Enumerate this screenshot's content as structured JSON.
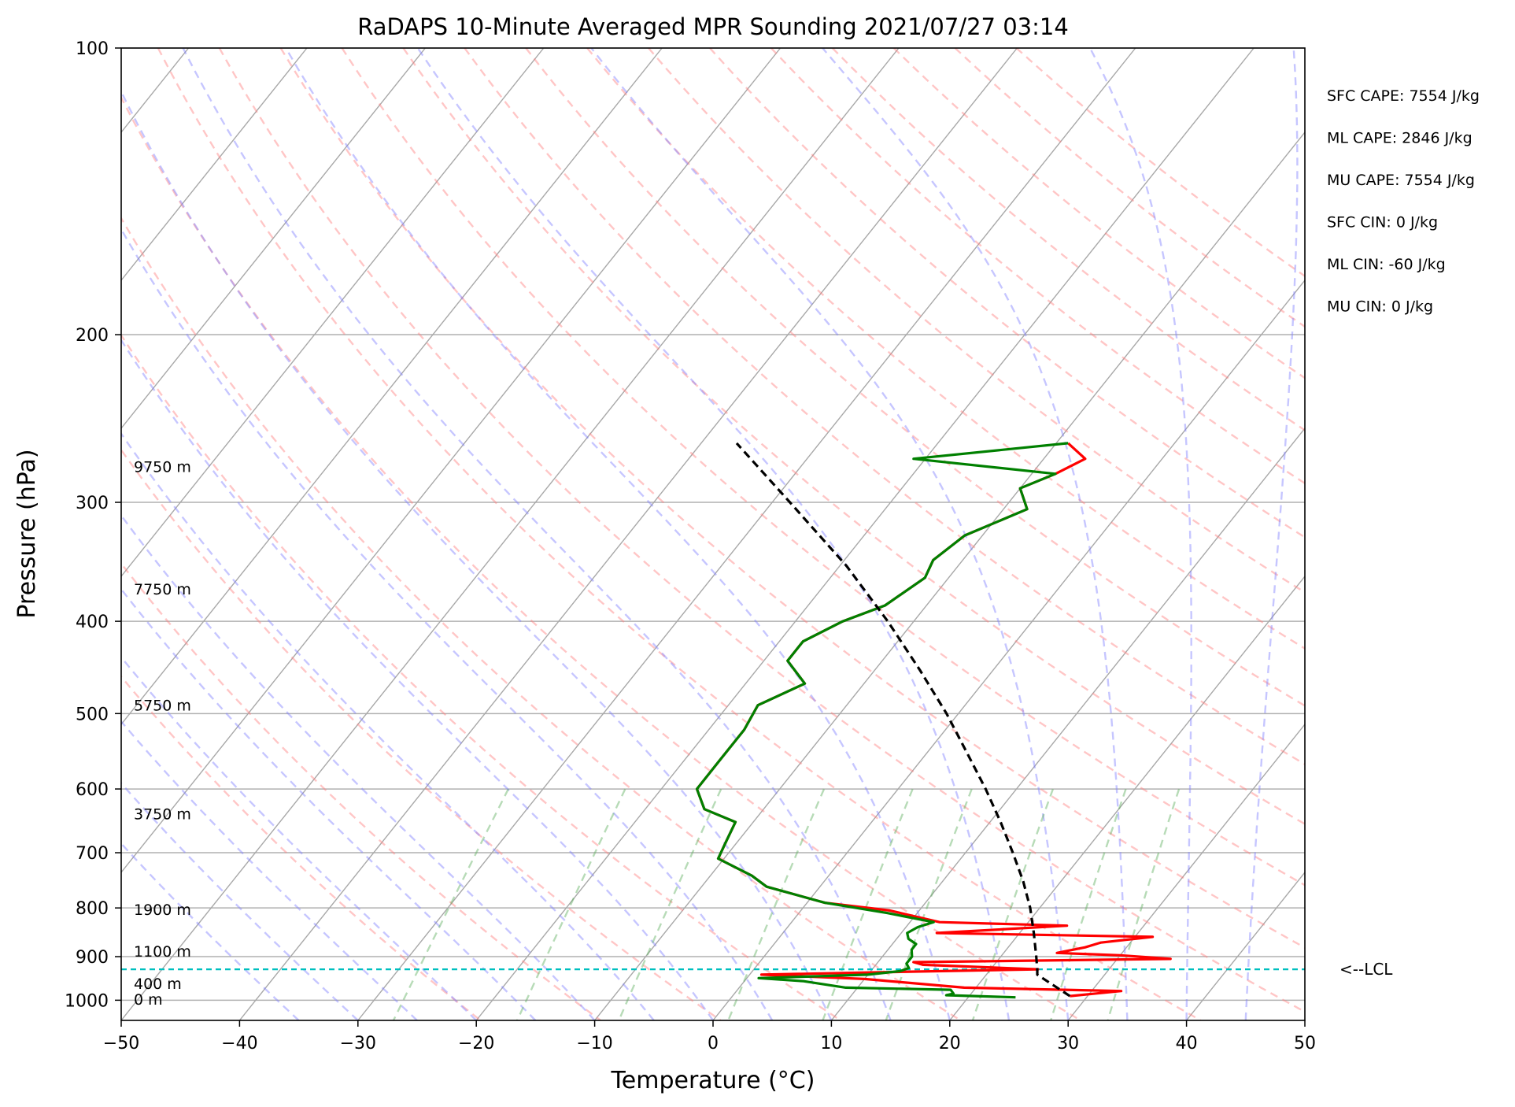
{
  "chart_data": {
    "type": "line",
    "subtype": "skew-T log-P sounding",
    "title": "RaDAPS 10-Minute Averaged MPR Sounding 2021/07/27 03:14",
    "xlabel": "Temperature (°C)",
    "ylabel": "Pressure (hPa)",
    "xlim": [
      -50,
      50
    ],
    "ylim": [
      1050,
      100
    ],
    "y_scale": "log",
    "grid": true,
    "x_ticks": [
      "−50",
      "−40",
      "−30",
      "−20",
      "−10",
      "0",
      "10",
      "20",
      "30",
      "40",
      "50"
    ],
    "x_tick_values": [
      -50,
      -40,
      -30,
      -20,
      -10,
      0,
      10,
      20,
      30,
      40,
      50
    ],
    "y_ticks": [
      "100",
      "200",
      "300",
      "400",
      "500",
      "600",
      "700",
      "800",
      "900",
      "1000"
    ],
    "y_tick_values": [
      100,
      200,
      300,
      400,
      500,
      600,
      700,
      800,
      900,
      1000
    ],
    "height_labels": [
      {
        "text": "9750 m",
        "pressure": 275
      },
      {
        "text": "7750 m",
        "pressure": 370
      },
      {
        "text": "5750 m",
        "pressure": 490
      },
      {
        "text": "3750 m",
        "pressure": 637
      },
      {
        "text": "1900 m",
        "pressure": 803
      },
      {
        "text": "1100 m",
        "pressure": 888
      },
      {
        "text": "400 m",
        "pressure": 960
      },
      {
        "text": "0 m",
        "pressure": 997
      }
    ],
    "indices": [
      {
        "label": "SFC CAPE: 7554 J/kg"
      },
      {
        "label": "ML CAPE: 2846 J/kg"
      },
      {
        "label": "MU CAPE: 7554 J/kg"
      },
      {
        "label": "SFC CIN: 0 J/kg"
      },
      {
        "label": "ML CIN: -60 J/kg"
      },
      {
        "label": "MU CIN: 0 J/kg"
      }
    ],
    "lcl": {
      "label": "<--LCL",
      "pressure": 928
    },
    "series": [
      {
        "key": "temperature",
        "color": "#ff0000",
        "points": [
          [
            990,
            28.5
          ],
          [
            978,
            32.5
          ],
          [
            970,
            19.0
          ],
          [
            950,
            10.0
          ],
          [
            940,
            1.0
          ],
          [
            935,
            10.0
          ],
          [
            928,
            24.0
          ],
          [
            918,
            14.0
          ],
          [
            912,
            13.0
          ],
          [
            905,
            34.5
          ],
          [
            897,
            30.0
          ],
          [
            892,
            24.5
          ],
          [
            880,
            26.5
          ],
          [
            870,
            27.5
          ],
          [
            858,
            31.5
          ],
          [
            850,
            13.0
          ],
          [
            835,
            23.5
          ],
          [
            828,
            12.5
          ],
          [
            805,
            7.5
          ],
          [
            790,
            1.5
          ],
          [
            760,
            -4.5
          ],
          [
            740,
            -6.5
          ],
          [
            710,
            -10.5
          ],
          [
            680,
            -11.0
          ],
          [
            650,
            -11.5
          ],
          [
            630,
            -15.0
          ],
          [
            600,
            -17.0
          ],
          [
            560,
            -17.0
          ],
          [
            520,
            -17.0
          ],
          [
            490,
            -17.5
          ],
          [
            465,
            -15.0
          ],
          [
            440,
            -18.0
          ],
          [
            420,
            -18.0
          ],
          [
            400,
            -16.0
          ],
          [
            385,
            -13.5
          ],
          [
            360,
            -12.0
          ],
          [
            345,
            -12.5
          ],
          [
            325,
            -11.5
          ],
          [
            305,
            -8.0
          ],
          [
            290,
            -10.0
          ],
          [
            280,
            -8.0
          ],
          [
            270,
            -6.5
          ],
          [
            260,
            -9.0
          ]
        ]
      },
      {
        "key": "dewpoint",
        "color": "#008000",
        "points": [
          [
            993,
            24.0
          ],
          [
            988,
            18.0
          ],
          [
            984,
            18.5
          ],
          [
            975,
            18.0
          ],
          [
            970,
            9.0
          ],
          [
            955,
            5.0
          ],
          [
            948,
            1.0
          ],
          [
            940,
            10.0
          ],
          [
            932,
            12.5
          ],
          [
            925,
            13.0
          ],
          [
            915,
            12.5
          ],
          [
            900,
            12.5
          ],
          [
            885,
            12.0
          ],
          [
            873,
            12.0
          ],
          [
            862,
            11.0
          ],
          [
            850,
            10.5
          ],
          [
            838,
            11.0
          ],
          [
            828,
            12.0
          ],
          [
            810,
            7.5
          ],
          [
            790,
            1.5
          ],
          [
            760,
            -4.5
          ],
          [
            740,
            -6.5
          ],
          [
            710,
            -10.5
          ],
          [
            680,
            -11.0
          ],
          [
            650,
            -11.5
          ],
          [
            630,
            -15.0
          ],
          [
            600,
            -17.0
          ],
          [
            560,
            -17.0
          ],
          [
            520,
            -17.0
          ],
          [
            490,
            -17.5
          ],
          [
            465,
            -15.0
          ],
          [
            440,
            -18.0
          ],
          [
            420,
            -18.0
          ],
          [
            400,
            -16.0
          ],
          [
            385,
            -13.5
          ],
          [
            360,
            -12.0
          ],
          [
            345,
            -12.5
          ],
          [
            325,
            -11.5
          ],
          [
            305,
            -8.0
          ],
          [
            290,
            -10.0
          ],
          [
            280,
            -8.0
          ],
          [
            270,
            -21.0
          ],
          [
            260,
            -9.0
          ]
        ]
      },
      {
        "key": "parcel",
        "color": "#000000",
        "style": "dashed",
        "points": [
          [
            990,
            28.5
          ],
          [
            940,
            24.3
          ],
          [
            930,
            24.0
          ],
          [
            900,
            23.0
          ],
          [
            850,
            21.2
          ],
          [
            800,
            19.2
          ],
          [
            750,
            16.8
          ],
          [
            700,
            14.0
          ],
          [
            650,
            10.9
          ],
          [
            600,
            7.4
          ],
          [
            550,
            3.4
          ],
          [
            500,
            -1.0
          ],
          [
            450,
            -6.2
          ],
          [
            400,
            -12.2
          ],
          [
            350,
            -19.4
          ],
          [
            300,
            -28.5
          ],
          [
            260,
            -37.0
          ]
        ]
      }
    ],
    "reference_lines": {
      "isotherms_c": [
        -150,
        -140,
        -130,
        -120,
        -110,
        -100,
        -90,
        -80,
        -70,
        -60,
        -50,
        -40,
        -30,
        -20,
        -10,
        0,
        10,
        20,
        30,
        40,
        50
      ],
      "dry_adiabats_color": "#ff0000",
      "moist_adiabats_color": "#0000ff",
      "mixing_ratio_color": "#008000",
      "isotherm_color": "#808080"
    }
  }
}
